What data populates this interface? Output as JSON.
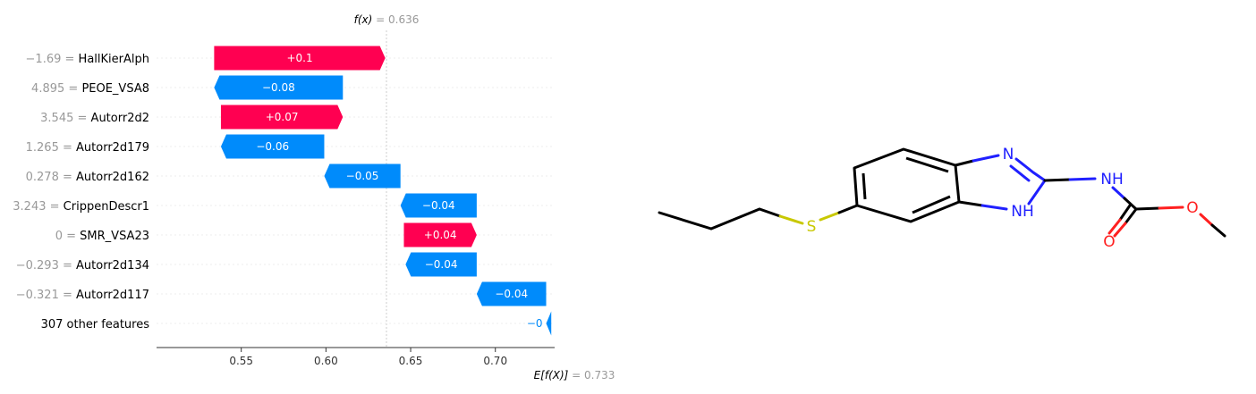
{
  "chart_data": {
    "type": "waterfall",
    "fx_label": "f(x)",
    "fx_value": "0.636",
    "ex_label": "E[f(X)]",
    "ex_value": "0.733",
    "base_value": 0.733,
    "output_value": 0.636,
    "xlim": [
      0.5,
      0.735
    ],
    "xticks": [
      {
        "value": 0.55,
        "label": "0.55"
      },
      {
        "value": 0.6,
        "label": "0.60"
      },
      {
        "value": 0.65,
        "label": "0.65"
      },
      {
        "value": 0.7,
        "label": "0.70"
      }
    ],
    "features": [
      {
        "value_label": "−1.69",
        "name": "HallKierAlph",
        "start": 0.534,
        "end": 0.635,
        "label": "+0.1"
      },
      {
        "value_label": "4.895",
        "name": "PEOE_VSA8",
        "start": 0.61,
        "end": 0.534,
        "label": "−0.08"
      },
      {
        "value_label": "3.545",
        "name": "Autorr2d2",
        "start": 0.538,
        "end": 0.61,
        "label": "+0.07"
      },
      {
        "value_label": "1.265",
        "name": "Autorr2d179",
        "start": 0.599,
        "end": 0.538,
        "label": "−0.06"
      },
      {
        "value_label": "0.278",
        "name": "Autorr2d162",
        "start": 0.644,
        "end": 0.599,
        "label": "−0.05"
      },
      {
        "value_label": "3.243",
        "name": "CrippenDescr1",
        "start": 0.689,
        "end": 0.644,
        "label": "−0.04"
      },
      {
        "value_label": "0",
        "name": "SMR_VSA23",
        "start": 0.646,
        "end": 0.689,
        "label": "+0.04"
      },
      {
        "value_label": "−0.293",
        "name": "Autorr2d134",
        "start": 0.689,
        "end": 0.647,
        "label": "−0.04"
      },
      {
        "value_label": "−0.321",
        "name": "Autorr2d117",
        "start": 0.73,
        "end": 0.689,
        "label": "−0.04"
      },
      {
        "value_label": "",
        "name": "307 other features",
        "start": 0.733,
        "end": 0.73,
        "label": "−0"
      }
    ],
    "colors": {
      "positive": "#ff0051",
      "negative": "#008bfb",
      "axis": "#333333",
      "muted": "#999999"
    }
  },
  "molecule": {
    "atoms": [
      {
        "label": "N",
        "color": "#2020ff"
      },
      {
        "label": "NH",
        "color": "#2020ff"
      },
      {
        "label": "NH",
        "color": "#2020ff"
      },
      {
        "label": "S",
        "color": "#c8c800"
      },
      {
        "label": "O",
        "color": "#ff2020"
      },
      {
        "label": "O",
        "color": "#ff2020"
      }
    ]
  }
}
